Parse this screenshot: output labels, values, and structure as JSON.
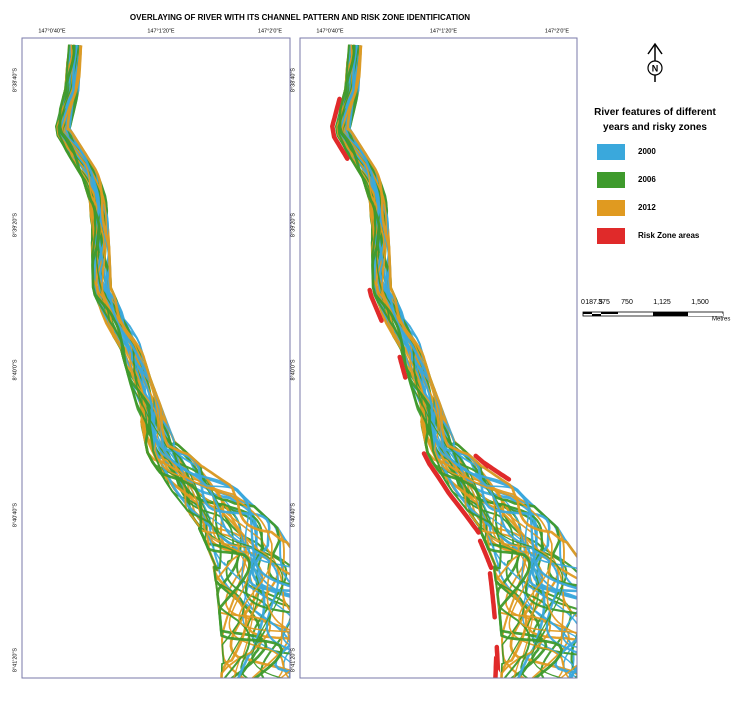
{
  "title": "OVERLAYING OF RIVER WITH ITS CHANNEL PATTERN AND RISK ZONE IDENTIFICATION",
  "map_panels": [
    {
      "lon_labels": [
        "147°0'40\"E",
        "147°1'20\"E",
        "147°2'0\"E"
      ],
      "lat_labels": [
        "8°38'40\"S",
        "8°39'20\"S",
        "8°40'0\"S",
        "8°40'40\"S",
        "8°41'20\"S"
      ]
    },
    {
      "lon_labels": [
        "147°0'40\"E",
        "147°1'20\"E",
        "147°2'0\"E"
      ],
      "lat_labels": [
        "8°38'40\"S",
        "8°39'20\"S",
        "8°40'0\"S",
        "8°40'40\"S",
        "8°41'20\"S"
      ]
    }
  ],
  "north_arrow": {
    "label": "N"
  },
  "legend": {
    "title": "River features of different years and risky zones",
    "items": [
      {
        "label": "2000",
        "color": "#3aa8dc"
      },
      {
        "label": "2006",
        "color": "#3e9a2c"
      },
      {
        "label": "2012",
        "color": "#e09a20"
      },
      {
        "label": "Risk Zone areas",
        "color": "#e02a2a"
      }
    ]
  },
  "scale_bar": {
    "labels": [
      "0",
      "187.5",
      "375",
      "750",
      "1,125",
      "1,500"
    ],
    "unit": "Metres"
  }
}
